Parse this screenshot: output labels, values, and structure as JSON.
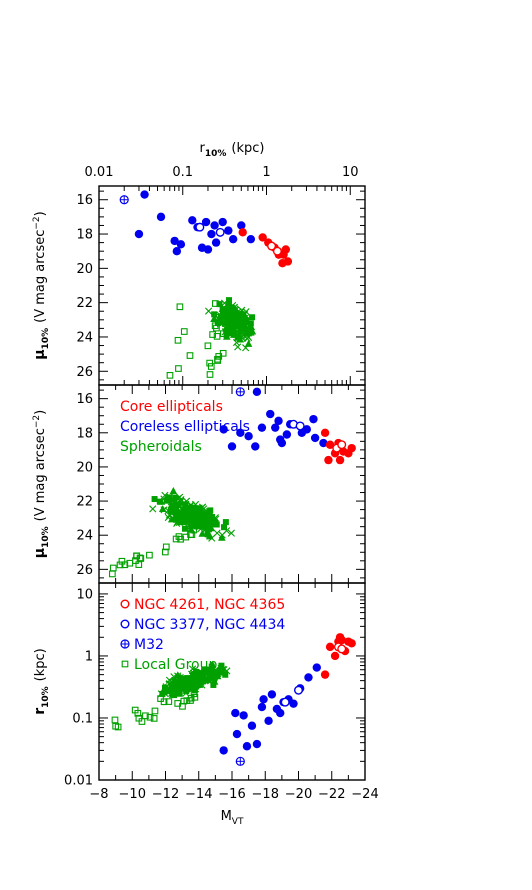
{
  "chart_data": {
    "type": "scatter",
    "colors": {
      "core": "#ff0000",
      "coreless": "#0000ee",
      "spheroidal": "#00a000"
    },
    "top_axis": {
      "label": "r",
      "label_sub": "10%",
      "label_unit": "(kpc)",
      "scale": "log",
      "xlim": [
        0.01,
        15
      ],
      "ticks": [
        0.01,
        0.1,
        1,
        10
      ],
      "tick_labels": [
        "0.01",
        "0.1",
        "1",
        "10"
      ]
    },
    "bottom_axis": {
      "label": "M",
      "label_sub": "VT",
      "xlim": [
        -8,
        -24
      ],
      "ticks": [
        -8,
        -10,
        -12,
        -14,
        -16,
        -18,
        -20,
        -22,
        -24
      ],
      "tick_labels": [
        "−8",
        "−10",
        "−12",
        "−14",
        "−16",
        "−18",
        "−20",
        "−22",
        "−24"
      ]
    },
    "panels": [
      {
        "id": "top",
        "ylabel": "μ",
        "ylabel_sub": "10%",
        "ylabel_unit": "(V mag arcsec",
        "ylabel_sup": "−2",
        "ylabel_close": ")",
        "ylim": [
          15.2,
          26.8
        ],
        "yticks": [
          16,
          18,
          20,
          22,
          24,
          26
        ],
        "ytick_labels": [
          "16",
          "18",
          "20",
          "22",
          "24",
          "26"
        ],
        "points": {
          "core_filled": [
            [
              0.52,
              17.9
            ],
            [
              0.9,
              18.2
            ],
            [
              1.05,
              18.5
            ],
            [
              1.25,
              18.8
            ],
            [
              1.4,
              19.2
            ],
            [
              1.6,
              19.2
            ],
            [
              1.7,
              18.9
            ],
            [
              1.55,
              19.7
            ],
            [
              1.8,
              19.6
            ]
          ],
          "core_open": [
            [
              1.15,
              18.7
            ],
            [
              1.35,
              19.0
            ]
          ],
          "coreless_filled": [
            [
              0.035,
              15.7
            ],
            [
              0.055,
              17.0
            ],
            [
              0.03,
              18.0
            ],
            [
              0.08,
              18.4
            ],
            [
              0.085,
              19.0
            ],
            [
              0.095,
              18.6
            ],
            [
              0.13,
              17.2
            ],
            [
              0.15,
              17.6
            ],
            [
              0.19,
              17.3
            ],
            [
              0.22,
              18.0
            ],
            [
              0.24,
              17.5
            ],
            [
              0.25,
              18.5
            ],
            [
              0.3,
              17.3
            ],
            [
              0.35,
              17.8
            ],
            [
              0.4,
              18.3
            ],
            [
              0.5,
              17.5
            ],
            [
              0.65,
              18.3
            ],
            [
              0.17,
              18.8
            ],
            [
              0.2,
              18.9
            ]
          ],
          "coreless_open": [
            [
              0.16,
              17.6
            ],
            [
              0.28,
              17.9
            ]
          ],
          "m32": [
            [
              0.02,
              16.0
            ]
          ]
        }
      },
      {
        "id": "middle",
        "ylabel": "μ",
        "ylabel_sub": "10%",
        "ylabel_unit": "(V mag arcsec",
        "ylabel_sup": "−2",
        "ylabel_close": ")",
        "ylim": [
          15.2,
          26.8
        ],
        "yticks": [
          16,
          18,
          20,
          22,
          24,
          26
        ],
        "ytick_labels": [
          "16",
          "18",
          "20",
          "22",
          "24",
          "26"
        ],
        "legend": [
          {
            "label": "Core ellipticals",
            "color": "#ff0000"
          },
          {
            "label": "Coreless ellipticals",
            "color": "#0000ee"
          },
          {
            "label": "Spheroidals",
            "color": "#00a000"
          }
        ],
        "points": {
          "core_filled": [
            [
              -21.6,
              18.0
            ],
            [
              -21.8,
              19.6
            ],
            [
              -22.2,
              19.2
            ],
            [
              -22.4,
              18.6
            ],
            [
              -22.7,
              19.1
            ],
            [
              -23.0,
              19.2
            ],
            [
              -23.2,
              18.9
            ],
            [
              -21.9,
              18.7
            ],
            [
              -22.5,
              19.6
            ]
          ],
          "core_open": [
            [
              -22.3,
              18.9
            ],
            [
              -22.6,
              18.7
            ]
          ],
          "coreless_filled": [
            [
              -15.5,
              17.8
            ],
            [
              -16.5,
              18.0
            ],
            [
              -17.0,
              18.2
            ],
            [
              -17.4,
              18.8
            ],
            [
              -17.5,
              15.6
            ],
            [
              -18.3,
              16.9
            ],
            [
              -18.6,
              17.7
            ],
            [
              -18.8,
              17.3
            ],
            [
              -18.9,
              18.4
            ],
            [
              -19.0,
              18.6
            ],
            [
              -19.5,
              17.5
            ],
            [
              -20.2,
              18.0
            ],
            [
              -20.5,
              17.8
            ],
            [
              -20.9,
              17.2
            ],
            [
              -21.0,
              18.3
            ],
            [
              -21.5,
              18.6
            ],
            [
              -17.8,
              17.7
            ],
            [
              -16.0,
              18.8
            ],
            [
              -19.3,
              18.1
            ]
          ],
          "coreless_open": [
            [
              -19.7,
              17.5
            ],
            [
              -20.1,
              17.6
            ]
          ],
          "m32": [
            [
              -16.5,
              15.6
            ]
          ]
        }
      },
      {
        "id": "bottom",
        "ylabel": "r",
        "ylabel_sub": "10%",
        "ylabel_unit": "(kpc)",
        "scale": "log",
        "ylim": [
          0.01,
          15
        ],
        "yticks": [
          0.01,
          0.1,
          1,
          10
        ],
        "ytick_labels": [
          "0.01",
          "0.1",
          "1",
          "10"
        ],
        "legend": [
          {
            "label": "NGC 4261, NGC 4365",
            "color": "#ff0000",
            "marker": "open-circle"
          },
          {
            "label": "NGC 3377, NGC 4434",
            "color": "#0000ee",
            "marker": "open-circle"
          },
          {
            "label": "M32",
            "color": "#0000ee",
            "marker": "cross-circle"
          },
          {
            "label": "Local Group",
            "color": "#00a000",
            "marker": "open-square"
          }
        ],
        "points": {
          "core_filled": [
            [
              -21.6,
              0.5
            ],
            [
              -21.9,
              1.4
            ],
            [
              -22.2,
              1.0
            ],
            [
              -22.4,
              1.7
            ],
            [
              -22.6,
              1.8
            ],
            [
              -22.8,
              1.2
            ],
            [
              -23.0,
              1.7
            ],
            [
              -23.2,
              1.6
            ],
            [
              -22.5,
              2.0
            ]
          ],
          "core_open": [
            [
              -22.4,
              1.4
            ],
            [
              -22.6,
              1.3
            ]
          ],
          "coreless_filled": [
            [
              -15.5,
              0.03
            ],
            [
              -16.3,
              0.055
            ],
            [
              -16.7,
              0.11
            ],
            [
              -16.9,
              0.035
            ],
            [
              -17.2,
              0.075
            ],
            [
              -17.5,
              0.038
            ],
            [
              -17.8,
              0.15
            ],
            [
              -18.2,
              0.09
            ],
            [
              -18.4,
              0.24
            ],
            [
              -18.7,
              0.14
            ],
            [
              -18.9,
              0.12
            ],
            [
              -19.1,
              0.18
            ],
            [
              -19.4,
              0.2
            ],
            [
              -20.1,
              0.3
            ],
            [
              -20.6,
              0.45
            ],
            [
              -21.1,
              0.65
            ],
            [
              -19.7,
              0.17
            ],
            [
              -17.9,
              0.2
            ],
            [
              -16.2,
              0.12
            ]
          ],
          "coreless_open": [
            [
              -19.2,
              0.18
            ],
            [
              -20.0,
              0.28
            ]
          ],
          "m32": [
            [
              -16.5,
              0.02
            ]
          ]
        }
      }
    ]
  }
}
